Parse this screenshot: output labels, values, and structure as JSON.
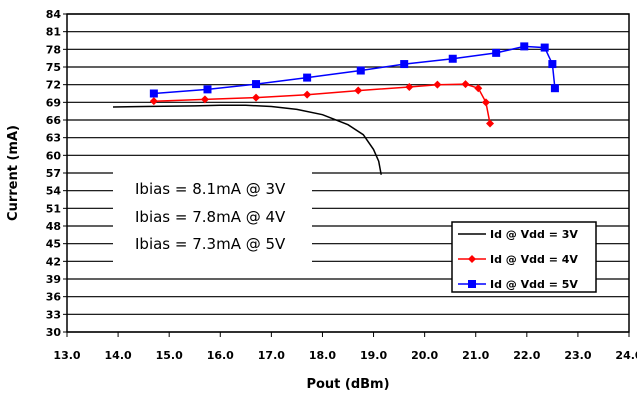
{
  "chart_data": {
    "type": "line",
    "title": "",
    "xlabel": "Pout (dBm)",
    "ylabel": "Current (mA)",
    "xlim": [
      13.0,
      24.0
    ],
    "ylim": [
      30,
      84
    ],
    "x_ticks": [
      "13.0",
      "14.0",
      "15.0",
      "16.0",
      "17.0",
      "18.0",
      "19.0",
      "20.0",
      "21.0",
      "22.0",
      "23.0",
      "24.0"
    ],
    "y_ticks": [
      "30",
      "33",
      "36",
      "39",
      "42",
      "45",
      "48",
      "51",
      "54",
      "57",
      "60",
      "63",
      "66",
      "69",
      "72",
      "75",
      "78",
      "81",
      "84"
    ],
    "grid": "horizontal",
    "legend_position": "bottom-right",
    "annotations": [
      "Ibias = 8.1mA @ 3V",
      "Ibias = 7.8mA @ 4V",
      "Ibias = 7.3mA @ 5V"
    ],
    "series": [
      {
        "name": "Id @ Vdd = 3V",
        "color": "#000000",
        "marker": "none",
        "points": [
          [
            13.9,
            68.2
          ],
          [
            14.5,
            68.3
          ],
          [
            15.5,
            68.4
          ],
          [
            16.0,
            68.5
          ],
          [
            16.5,
            68.5
          ],
          [
            17.0,
            68.3
          ],
          [
            17.5,
            67.8
          ],
          [
            18.0,
            66.9
          ],
          [
            18.5,
            65.2
          ],
          [
            18.8,
            63.5
          ],
          [
            19.0,
            61.0
          ],
          [
            19.1,
            59.0
          ],
          [
            19.15,
            56.7
          ]
        ]
      },
      {
        "name": "Id @ Vdd = 4V",
        "color": "#ff0000",
        "marker": "diamond",
        "points": [
          [
            14.7,
            69.2
          ],
          [
            15.7,
            69.5
          ],
          [
            16.7,
            69.8
          ],
          [
            17.7,
            70.3
          ],
          [
            18.7,
            71.0
          ],
          [
            19.7,
            71.6
          ],
          [
            20.25,
            72.0
          ],
          [
            20.8,
            72.1
          ],
          [
            21.05,
            71.4
          ],
          [
            21.2,
            69.0
          ],
          [
            21.28,
            65.4
          ]
        ]
      },
      {
        "name": "Id @ Vdd = 5V",
        "color": "#0000ff",
        "marker": "square",
        "points": [
          [
            14.7,
            70.5
          ],
          [
            15.75,
            71.2
          ],
          [
            16.7,
            72.1
          ],
          [
            17.7,
            73.2
          ],
          [
            18.75,
            74.4
          ],
          [
            19.6,
            75.5
          ],
          [
            20.55,
            76.4
          ],
          [
            21.4,
            77.4
          ],
          [
            21.95,
            78.5
          ],
          [
            22.35,
            78.3
          ],
          [
            22.5,
            75.5
          ],
          [
            22.55,
            71.4
          ]
        ]
      }
    ]
  }
}
